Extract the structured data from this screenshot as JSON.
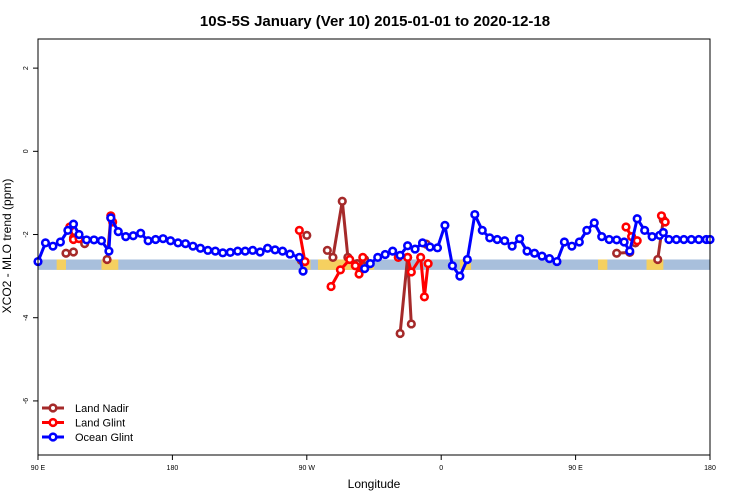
{
  "chart_data": {
    "type": "line",
    "title": "10S-5S January (Ver 10)   2015-01-01 to 2020-12-18",
    "xlabel": "Longitude",
    "ylabel": "XCO2 - MLO trend (ppm)",
    "xlim": [
      -90,
      270
    ],
    "ylim": [
      -7.3,
      2.7
    ],
    "x_ticks": [
      {
        "value": -90,
        "label": "90 E"
      },
      {
        "value": -18,
        "label": "180"
      },
      {
        "value": 54,
        "label": "90 W"
      },
      {
        "value": 126,
        "label": "0"
      },
      {
        "value": 198,
        "label": "90 E"
      },
      {
        "value": 270,
        "label": "180"
      }
    ],
    "y_ticks": [
      {
        "value": 2,
        "label": "2"
      },
      {
        "value": 0,
        "label": "0"
      },
      {
        "value": -2,
        "label": "-2"
      },
      {
        "value": -4,
        "label": "-4"
      },
      {
        "value": -6,
        "label": "-6"
      }
    ],
    "background_band": {
      "ymin": -2.85,
      "ymax": -2.6,
      "color": "#a8bfdc"
    },
    "land_highlight": {
      "color": "#f5d060",
      "ranges": [
        [
          -80,
          -75
        ],
        [
          -56,
          -47
        ],
        [
          51,
          56
        ],
        [
          60,
          90
        ],
        [
          136,
          142
        ],
        [
          210,
          215
        ],
        [
          236,
          245
        ]
      ]
    },
    "legend": {
      "position": "bottom-left"
    },
    "series": [
      {
        "name": "Land Nadir",
        "color": "#a52a2a",
        "segments": [
          {
            "x": [
              -75,
              -71
            ],
            "y": [
              -2.45,
              -2.42
            ]
          },
          {
            "x": [
              -53,
              -51
            ],
            "y": [
              -2.6,
              -1.6
            ]
          },
          {
            "x": [
              65,
              68,
              73,
              76,
              81,
              85
            ],
            "y": [
              -2.38,
              -2.55,
              -1.2,
              -2.55,
              -2.7,
              -2.6
            ]
          },
          {
            "x": [
              104,
              108,
              110
            ],
            "y": [
              -4.38,
              -2.55,
              -4.15
            ]
          },
          {
            "x": [
              220,
              227
            ],
            "y": [
              -2.45,
              -2.43
            ]
          },
          {
            "x": [
              242,
              245
            ],
            "y": [
              -2.6,
              -1.65
            ]
          }
        ],
        "points": [
          {
            "x": -71,
            "y": -2.08
          },
          {
            "x": -65,
            "y": -2.22
          },
          {
            "x": 51,
            "y": -2.62
          },
          {
            "x": 54,
            "y": -2.02
          },
          {
            "x": 118,
            "y": -2.23
          },
          {
            "x": 230,
            "y": -2.2
          }
        ]
      },
      {
        "name": "Land Glint",
        "color": "#ff0000",
        "segments": [
          {
            "x": [
              -73,
              -71,
              -68
            ],
            "y": [
              -1.82,
              -2.12,
              -2.1
            ]
          },
          {
            "x": [
              -51,
              -50
            ],
            "y": [
              -1.55,
              -1.7
            ]
          },
          {
            "x": [
              50,
              53
            ],
            "y": [
              -1.9,
              -2.65
            ]
          },
          {
            "x": [
              67,
              72,
              77,
              80,
              82,
              84
            ],
            "y": [
              -3.25,
              -2.85,
              -2.6,
              -2.75,
              -2.95,
              -2.55
            ]
          },
          {
            "x": [
              103,
              108,
              110,
              115,
              117,
              119
            ],
            "y": [
              -2.55,
              -2.55,
              -2.9,
              -2.55,
              -3.5,
              -2.7
            ]
          },
          {
            "x": [
              225,
              228,
              231
            ],
            "y": [
              -1.82,
              -2.05,
              -2.15
            ]
          },
          {
            "x": [
              244,
              246
            ],
            "y": [
              -1.55,
              -1.7
            ]
          }
        ],
        "points": []
      },
      {
        "name": "Ocean Glint",
        "color": "#0000ff",
        "segments": [
          {
            "x": [
              -90,
              -86,
              -82,
              -78,
              -74,
              -71,
              -68,
              -64,
              -60,
              -56,
              -52,
              -51,
              -47,
              -43,
              -39,
              -35,
              -31,
              -27,
              -23,
              -19,
              -15,
              -11,
              -7,
              -3,
              1,
              5,
              9,
              13,
              17,
              21,
              25,
              29,
              33,
              37,
              41,
              45,
              50,
              52
            ],
            "y": [
              -2.65,
              -2.2,
              -2.28,
              -2.18,
              -1.9,
              -1.75,
              -2.0,
              -2.13,
              -2.13,
              -2.15,
              -2.4,
              -1.6,
              -1.93,
              -2.05,
              -2.03,
              -1.97,
              -2.15,
              -2.12,
              -2.1,
              -2.15,
              -2.2,
              -2.22,
              -2.28,
              -2.33,
              -2.38,
              -2.4,
              -2.44,
              -2.43,
              -2.4,
              -2.4,
              -2.38,
              -2.42,
              -2.33,
              -2.37,
              -2.4,
              -2.47,
              -2.55,
              -2.88
            ]
          },
          {
            "x": [
              85,
              88,
              92,
              96,
              100,
              104,
              108,
              112,
              116,
              120,
              124,
              128,
              132,
              136,
              140,
              144,
              148,
              152,
              156,
              160,
              164,
              168,
              172,
              176,
              180,
              184,
              188,
              192,
              196,
              200,
              204,
              208,
              212,
              216,
              220,
              224,
              227,
              231,
              235,
              239,
              243,
              245,
              248,
              252,
              256,
              260,
              264,
              268,
              270
            ],
            "y": [
              -2.82,
              -2.7,
              -2.55,
              -2.48,
              -2.4,
              -2.5,
              -2.27,
              -2.35,
              -2.2,
              -2.3,
              -2.32,
              -1.78,
              -2.75,
              -3.0,
              -2.6,
              -1.52,
              -1.9,
              -2.08,
              -2.12,
              -2.15,
              -2.28,
              -2.1,
              -2.4,
              -2.45,
              -2.52,
              -2.58,
              -2.65,
              -2.18,
              -2.28,
              -2.18,
              -1.9,
              -1.72,
              -2.05,
              -2.12,
              -2.13,
              -2.18,
              -2.4,
              -1.62,
              -1.9,
              -2.05,
              -2.02,
              -1.95,
              -2.12,
              -2.12,
              -2.12,
              -2.12,
              -2.12,
              -2.12,
              -2.12
            ]
          }
        ],
        "points": []
      }
    ]
  }
}
